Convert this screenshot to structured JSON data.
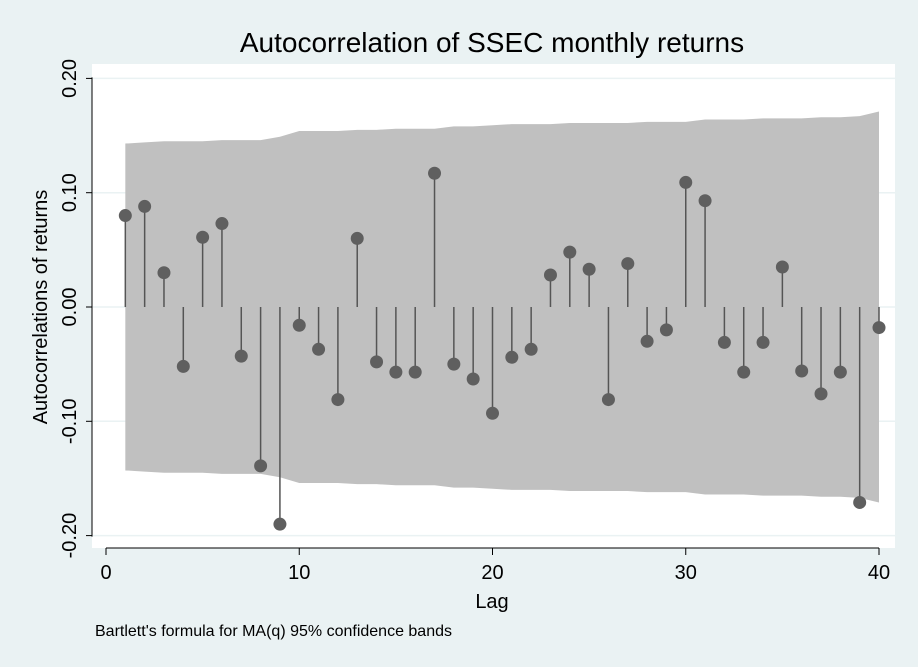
{
  "chart_data": {
    "type": "stem",
    "title": "Autocorrelation of SSEC monthly returns",
    "xlabel": "Lag",
    "ylabel": "Autocorrelations of returns",
    "note": "Bartlett's formula for MA(q) 95% confidence bands",
    "xlim": [
      0,
      40
    ],
    "ylim": [
      -0.2,
      0.2
    ],
    "xticks": [
      0,
      10,
      20,
      30,
      40
    ],
    "yticks": [
      -0.2,
      -0.1,
      0.0,
      0.1,
      0.2
    ],
    "ytick_labels": [
      "-0.20",
      "-0.10",
      "0.00",
      "0.10",
      "0.20"
    ],
    "grid": "horizontal",
    "x": [
      1,
      2,
      3,
      4,
      5,
      6,
      7,
      8,
      9,
      10,
      11,
      12,
      13,
      14,
      15,
      16,
      17,
      18,
      19,
      20,
      21,
      22,
      23,
      24,
      25,
      26,
      27,
      28,
      29,
      30,
      31,
      32,
      33,
      34,
      35,
      36,
      37,
      38,
      39,
      40
    ],
    "values": [
      0.08,
      0.088,
      0.03,
      -0.052,
      0.061,
      0.073,
      -0.043,
      -0.139,
      -0.19,
      -0.016,
      -0.037,
      -0.081,
      0.06,
      -0.048,
      -0.057,
      -0.057,
      0.117,
      -0.05,
      -0.063,
      -0.093,
      -0.044,
      -0.037,
      0.028,
      0.048,
      0.033,
      -0.081,
      0.038,
      -0.03,
      -0.02,
      0.109,
      0.093,
      -0.031,
      -0.057,
      -0.031,
      0.035,
      -0.056,
      -0.076,
      -0.057,
      -0.171,
      -0.018
    ],
    "confidence_band": [
      0.143,
      0.144,
      0.145,
      0.145,
      0.145,
      0.146,
      0.146,
      0.146,
      0.149,
      0.154,
      0.154,
      0.154,
      0.155,
      0.155,
      0.156,
      0.156,
      0.156,
      0.158,
      0.158,
      0.159,
      0.16,
      0.16,
      0.16,
      0.161,
      0.161,
      0.161,
      0.161,
      0.162,
      0.162,
      0.162,
      0.164,
      0.164,
      0.164,
      0.165,
      0.165,
      0.165,
      0.166,
      0.166,
      0.167,
      0.171
    ],
    "colors": {
      "background": "#eaf2f3",
      "plot_area": "#ffffff",
      "band": "#c0c0c0",
      "stem": "#555555",
      "marker": "#5f5f5f",
      "grid": "#eaf2f3"
    }
  }
}
